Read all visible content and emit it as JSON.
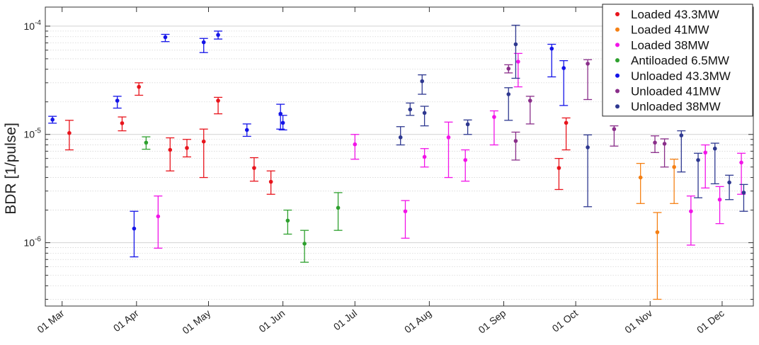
{
  "chart_data": {
    "type": "scatter",
    "title": "",
    "xlabel": "",
    "ylabel": "BDR [1/pulse]",
    "yscale": "log",
    "ylim": [
      2.6e-07,
      0.00015
    ],
    "xlim": [
      "2016-02-23",
      "2016-12-14"
    ],
    "grid": true,
    "legend_position": "top-right",
    "x_ticks": [
      {
        "date": "2016-03-01",
        "label": "01 Mar"
      },
      {
        "date": "2016-04-01",
        "label": "01 Apr"
      },
      {
        "date": "2016-05-01",
        "label": "01 May"
      },
      {
        "date": "2016-06-01",
        "label": "01 Jun"
      },
      {
        "date": "2016-07-01",
        "label": "01 Jul"
      },
      {
        "date": "2016-08-01",
        "label": "01 Aug"
      },
      {
        "date": "2016-09-01",
        "label": "01 Sep"
      },
      {
        "date": "2016-10-01",
        "label": "01 Oct"
      },
      {
        "date": "2016-11-01",
        "label": "01 Nov"
      },
      {
        "date": "2016-12-01",
        "label": "01 Dec"
      }
    ],
    "y_ticks": [
      {
        "value": 1e-06,
        "base": "10",
        "exp": "-6"
      },
      {
        "value": 1e-05,
        "base": "10",
        "exp": "-5"
      },
      {
        "value": 0.0001,
        "base": "10",
        "exp": "-4"
      }
    ],
    "series": [
      {
        "name": "Loaded 43.3MW",
        "color": "#e8141c",
        "points": [
          {
            "x": "2016-03-04",
            "y": 1.03e-05,
            "lo": 7.2e-06,
            "hi": 1.35e-05
          },
          {
            "x": "2016-03-26",
            "y": 1.27e-05,
            "lo": 1.08e-05,
            "hi": 1.45e-05
          },
          {
            "x": "2016-04-02",
            "y": 2.75e-05,
            "lo": 2.3e-05,
            "hi": 3e-05
          },
          {
            "x": "2016-04-15",
            "y": 7.2e-06,
            "lo": 4.6e-06,
            "hi": 9.3e-06
          },
          {
            "x": "2016-04-22",
            "y": 7.5e-06,
            "lo": 6.2e-06,
            "hi": 9e-06
          },
          {
            "x": "2016-04-29",
            "y": 8.6e-06,
            "lo": 4e-06,
            "hi": 1.12e-05
          },
          {
            "x": "2016-05-05",
            "y": 2.05e-05,
            "lo": 1.55e-05,
            "hi": 2.2e-05
          },
          {
            "x": "2016-05-20",
            "y": 4.9e-06,
            "lo": 3.7e-06,
            "hi": 6.1e-06
          },
          {
            "x": "2016-05-27",
            "y": 3.65e-06,
            "lo": 2.8e-06,
            "hi": 4.6e-06
          },
          {
            "x": "2016-09-24",
            "y": 4.9e-06,
            "lo": 3.1e-06,
            "hi": 6e-06
          },
          {
            "x": "2016-09-27",
            "y": 1.28e-05,
            "lo": 7.2e-06,
            "hi": 1.42e-05
          }
        ]
      },
      {
        "name": "Loaded 41MW",
        "color": "#f58014",
        "points": [
          {
            "x": "2016-10-28",
            "y": 4e-06,
            "lo": 2.3e-06,
            "hi": 5.4e-06
          },
          {
            "x": "2016-11-04",
            "y": 1.25e-06,
            "lo": 3e-07,
            "hi": 1.9e-06
          },
          {
            "x": "2016-11-11",
            "y": 5e-06,
            "lo": 2.3e-06,
            "hi": 5.9e-06
          }
        ]
      },
      {
        "name": "Loaded 38MW",
        "color": "#f214e8",
        "points": [
          {
            "x": "2016-04-10",
            "y": 1.75e-06,
            "lo": 8.9e-07,
            "hi": 2.7e-06
          },
          {
            "x": "2016-07-01",
            "y": 8.1e-06,
            "lo": 5.9e-06,
            "hi": 1e-05
          },
          {
            "x": "2016-07-22",
            "y": 1.95e-06,
            "lo": 1.1e-06,
            "hi": 2.45e-06
          },
          {
            "x": "2016-07-30",
            "y": 6.2e-06,
            "lo": 5e-06,
            "hi": 7.4e-06
          },
          {
            "x": "2016-08-09",
            "y": 9.4e-06,
            "lo": 4e-06,
            "hi": 1.3e-05
          },
          {
            "x": "2016-08-16",
            "y": 5.8e-06,
            "lo": 3.7e-06,
            "hi": 7.2e-06
          },
          {
            "x": "2016-08-28",
            "y": 1.45e-05,
            "lo": 8e-06,
            "hi": 1.65e-05
          },
          {
            "x": "2016-09-07",
            "y": 4.7e-05,
            "lo": 2.75e-05,
            "hi": 5.6e-05
          },
          {
            "x": "2016-11-18",
            "y": 1.95e-06,
            "lo": 9.5e-07,
            "hi": 2.7e-06
          },
          {
            "x": "2016-11-24",
            "y": 6.8e-06,
            "lo": 3.2e-06,
            "hi": 8e-06
          },
          {
            "x": "2016-11-30",
            "y": 2.5e-06,
            "lo": 1.5e-06,
            "hi": 3.3e-06
          },
          {
            "x": "2016-12-09",
            "y": 5.5e-06,
            "lo": 2.8e-06,
            "hi": 6.7e-06
          }
        ]
      },
      {
        "name": "Antiloaded 6.5MW",
        "color": "#2ea02e",
        "points": [
          {
            "x": "2016-04-05",
            "y": 8.4e-06,
            "lo": 7.3e-06,
            "hi": 9.5e-06
          },
          {
            "x": "2016-06-03",
            "y": 1.6e-06,
            "lo": 1.2e-06,
            "hi": 2e-06
          },
          {
            "x": "2016-06-10",
            "y": 9.8e-07,
            "lo": 6.6e-07,
            "hi": 1.3e-06
          },
          {
            "x": "2016-06-24",
            "y": 2.1e-06,
            "lo": 1.3e-06,
            "hi": 2.9e-06
          }
        ]
      },
      {
        "name": "Unloaded 43.3MW",
        "color": "#1414e8",
        "points": [
          {
            "x": "2016-02-26",
            "y": 1.37e-05,
            "lo": 1.27e-05,
            "hi": 1.47e-05
          },
          {
            "x": "2016-03-24",
            "y": 2.05e-05,
            "lo": 1.75e-05,
            "hi": 2.25e-05
          },
          {
            "x": "2016-03-31",
            "y": 1.35e-06,
            "lo": 7.4e-07,
            "hi": 1.95e-06
          },
          {
            "x": "2016-04-13",
            "y": 7.9e-05,
            "lo": 7.2e-05,
            "hi": 8.4e-05
          },
          {
            "x": "2016-04-29",
            "y": 7.1e-05,
            "lo": 5.7e-05,
            "hi": 7.7e-05
          },
          {
            "x": "2016-05-05",
            "y": 8.3e-05,
            "lo": 7.6e-05,
            "hi": 9e-05
          },
          {
            "x": "2016-05-17",
            "y": 1.1e-05,
            "lo": 9.6e-06,
            "hi": 1.25e-05
          },
          {
            "x": "2016-05-31",
            "y": 1.55e-05,
            "lo": 1.12e-05,
            "hi": 1.9e-05
          },
          {
            "x": "2016-06-01",
            "y": 1.28e-05,
            "lo": 1.1e-05,
            "hi": 1.5e-05
          },
          {
            "x": "2016-09-21",
            "y": 6.2e-05,
            "lo": 3.4e-05,
            "hi": 6.8e-05
          },
          {
            "x": "2016-09-26",
            "y": 4.1e-05,
            "lo": 1.85e-05,
            "hi": 4.8e-05
          }
        ]
      },
      {
        "name": "Unloaded 41MW",
        "color": "#8a2e8a",
        "points": [
          {
            "x": "2016-09-03",
            "y": 4.05e-05,
            "lo": 3.7e-05,
            "hi": 4.4e-05
          },
          {
            "x": "2016-09-06",
            "y": 8.7e-06,
            "lo": 5.8e-06,
            "hi": 1.05e-05
          },
          {
            "x": "2016-09-12",
            "y": 2.05e-05,
            "lo": 1.25e-05,
            "hi": 2.25e-05
          },
          {
            "x": "2016-10-06",
            "y": 4.5e-05,
            "lo": 2.1e-05,
            "hi": 4.9e-05
          },
          {
            "x": "2016-10-17",
            "y": 1.12e-05,
            "lo": 7.8e-06,
            "hi": 1.2e-05
          },
          {
            "x": "2016-11-03",
            "y": 8.4e-06,
            "lo": 6.8e-06,
            "hi": 9.7e-06
          },
          {
            "x": "2016-11-07",
            "y": 8.2e-06,
            "lo": 5e-06,
            "hi": 9.1e-06
          }
        ]
      },
      {
        "name": "Unloaded 38MW",
        "color": "#2e3890",
        "points": [
          {
            "x": "2016-07-20",
            "y": 9.4e-06,
            "lo": 8e-06,
            "hi": 1.18e-05
          },
          {
            "x": "2016-07-24",
            "y": 1.7e-05,
            "lo": 1.5e-05,
            "hi": 1.95e-05
          },
          {
            "x": "2016-07-29",
            "y": 3.1e-05,
            "lo": 2.35e-05,
            "hi": 3.55e-05
          },
          {
            "x": "2016-07-30",
            "y": 1.58e-05,
            "lo": 1.2e-05,
            "hi": 1.82e-05
          },
          {
            "x": "2016-08-17",
            "y": 1.24e-05,
            "lo": 1e-05,
            "hi": 1.36e-05
          },
          {
            "x": "2016-09-03",
            "y": 2.35e-05,
            "lo": 1.35e-05,
            "hi": 2.7e-05
          },
          {
            "x": "2016-09-06",
            "y": 6.8e-05,
            "lo": 3.3e-05,
            "hi": 0.000102
          },
          {
            "x": "2016-10-06",
            "y": 7.6e-06,
            "lo": 2.15e-06,
            "hi": 9.9e-06
          },
          {
            "x": "2016-11-14",
            "y": 9.8e-06,
            "lo": 4.5e-06,
            "hi": 1.08e-05
          },
          {
            "x": "2016-11-21",
            "y": 5.8e-06,
            "lo": 2.6e-06,
            "hi": 6.7e-06
          },
          {
            "x": "2016-11-28",
            "y": 7.4e-06,
            "lo": 3.5e-06,
            "hi": 8.3e-06
          },
          {
            "x": "2016-12-04",
            "y": 3.6e-06,
            "lo": 2.5e-06,
            "hi": 4.2e-06
          },
          {
            "x": "2016-12-10",
            "y": 2.9e-06,
            "lo": 1.95e-06,
            "hi": 3.45e-06
          }
        ]
      }
    ]
  }
}
